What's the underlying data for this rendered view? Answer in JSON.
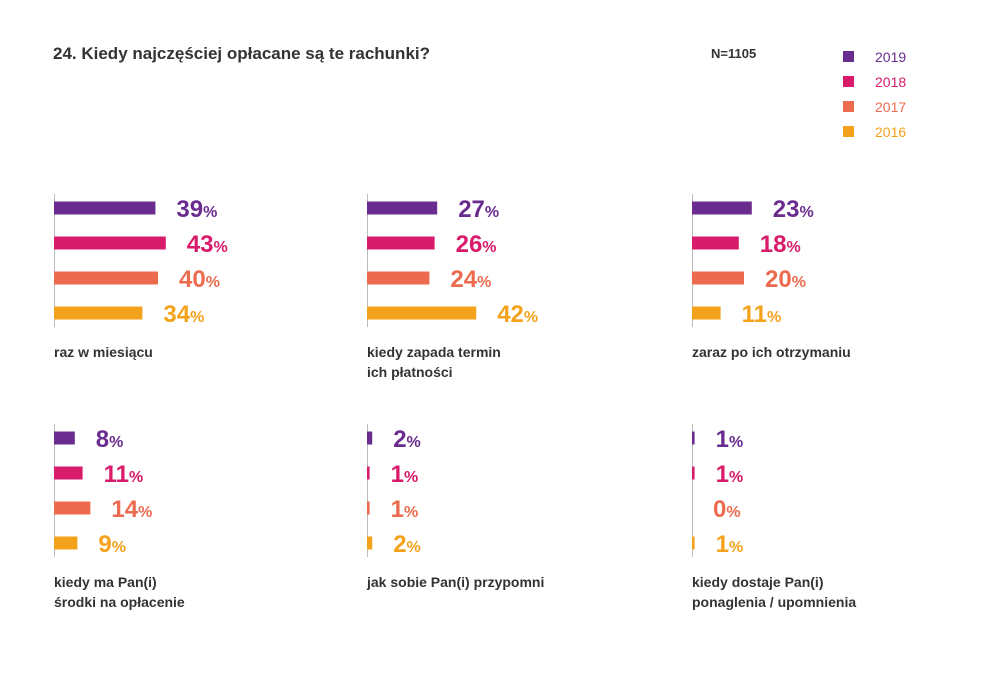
{
  "title": "24. Kiedy najczęściej opłacane są te rachunki?",
  "sample": "N=1105",
  "legend": [
    {
      "label": "2019",
      "color": "#6a2c8f"
    },
    {
      "label": "2018",
      "color": "#d81b6a"
    },
    {
      "label": "2017",
      "color": "#ec6b4f"
    },
    {
      "label": "2016",
      "color": "#f4a21c"
    }
  ],
  "chart_data": [
    {
      "type": "bar",
      "orientation": "horizontal",
      "category": [
        "raz w miesiącu"
      ],
      "series_labels": [
        "2019",
        "2018",
        "2017",
        "2016"
      ],
      "values": [
        39,
        43,
        40,
        34
      ],
      "value_labels": [
        "39",
        "43",
        "40",
        "34"
      ],
      "unit": "%"
    },
    {
      "type": "bar",
      "orientation": "horizontal",
      "category": [
        "kiedy zapada termin",
        "ich płatności"
      ],
      "series_labels": [
        "2019",
        "2018",
        "2017",
        "2016"
      ],
      "values": [
        27,
        26,
        24,
        42
      ],
      "value_labels": [
        "27",
        "26",
        "24",
        "42"
      ],
      "unit": "%"
    },
    {
      "type": "bar",
      "orientation": "horizontal",
      "category": [
        "zaraz po ich otrzymaniu"
      ],
      "series_labels": [
        "2019",
        "2018",
        "2017",
        "2016"
      ],
      "values": [
        23,
        18,
        20,
        11
      ],
      "value_labels": [
        "23",
        "18",
        "20",
        "11"
      ],
      "unit": "%"
    },
    {
      "type": "bar",
      "orientation": "horizontal",
      "category": [
        "kiedy ma Pan(i)",
        "środki na opłacenie"
      ],
      "series_labels": [
        "2019",
        "2018",
        "2017",
        "2016"
      ],
      "values": [
        8,
        11,
        14,
        9
      ],
      "value_labels": [
        "8",
        "11",
        "14",
        "9"
      ],
      "unit": "%"
    },
    {
      "type": "bar",
      "orientation": "horizontal",
      "category": [
        "jak sobie Pan(i) przypomni"
      ],
      "series_labels": [
        "2019",
        "2018",
        "2017",
        "2016"
      ],
      "values": [
        2,
        1,
        1,
        2
      ],
      "value_labels": [
        "2",
        "1",
        "1",
        "2"
      ],
      "unit": "%"
    },
    {
      "type": "bar",
      "orientation": "horizontal",
      "category": [
        "kiedy dostaje Pan(i)",
        "ponaglenia / upomnienia"
      ],
      "series_labels": [
        "2019",
        "2018",
        "2017",
        "2016"
      ],
      "values": [
        1,
        1,
        0,
        1
      ],
      "value_labels": [
        "1",
        "1",
        "0",
        "1"
      ],
      "unit": "%"
    }
  ]
}
